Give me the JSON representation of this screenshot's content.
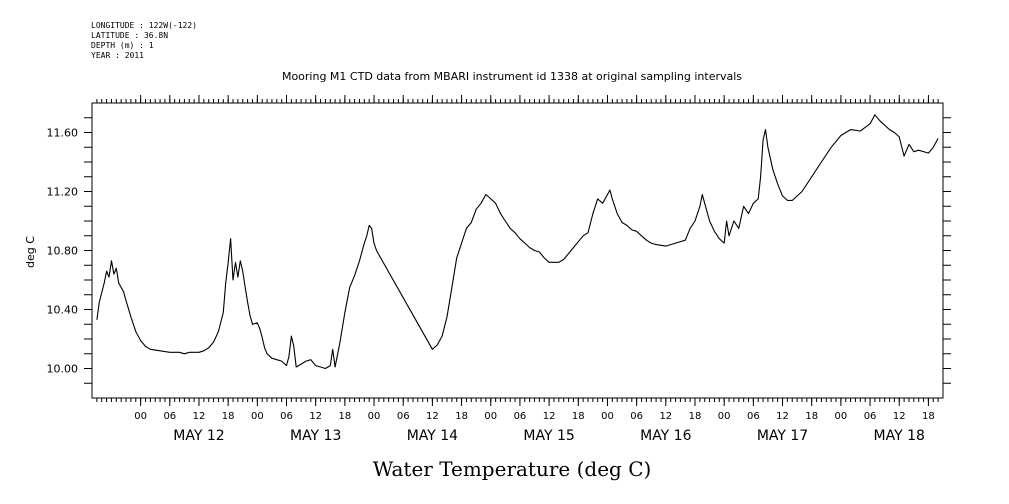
{
  "header": {
    "lines": [
      "LONGITUDE : 122W(-122)",
      "LATITUDE : 36.8N",
      "DEPTH (m) : 1",
      "YEAR : 2011"
    ]
  },
  "chart_data": {
    "type": "line",
    "title": "Mooring M1 CTD data from MBARI instrument id 1338 at original sampling intervals",
    "xlabel": "Water Temperature (deg C)",
    "ylabel": "deg C",
    "ylim": [
      9.8,
      11.8
    ],
    "xlim": [
      "2011-05-11T14:00",
      "2011-05-18T21:00"
    ],
    "y_ticks": [
      10.0,
      10.4,
      10.8,
      11.2,
      11.6
    ],
    "y_tick_labels": [
      "10.00",
      "10.40",
      "10.80",
      "11.20",
      "11.60"
    ],
    "x_hour_ticks": [
      {
        "t": "2011-05-12T00:00",
        "label": "00"
      },
      {
        "t": "2011-05-12T06:00",
        "label": "06"
      },
      {
        "t": "2011-05-12T12:00",
        "label": "12"
      },
      {
        "t": "2011-05-12T18:00",
        "label": "18"
      },
      {
        "t": "2011-05-13T00:00",
        "label": "00"
      },
      {
        "t": "2011-05-13T06:00",
        "label": "06"
      },
      {
        "t": "2011-05-13T12:00",
        "label": "12"
      },
      {
        "t": "2011-05-13T18:00",
        "label": "18"
      },
      {
        "t": "2011-05-14T00:00",
        "label": "00"
      },
      {
        "t": "2011-05-14T06:00",
        "label": "06"
      },
      {
        "t": "2011-05-14T12:00",
        "label": "12"
      },
      {
        "t": "2011-05-14T18:00",
        "label": "18"
      },
      {
        "t": "2011-05-15T00:00",
        "label": "00"
      },
      {
        "t": "2011-05-15T06:00",
        "label": "06"
      },
      {
        "t": "2011-05-15T12:00",
        "label": "12"
      },
      {
        "t": "2011-05-15T18:00",
        "label": "18"
      },
      {
        "t": "2011-05-16T00:00",
        "label": "00"
      },
      {
        "t": "2011-05-16T06:00",
        "label": "06"
      },
      {
        "t": "2011-05-16T12:00",
        "label": "12"
      },
      {
        "t": "2011-05-16T18:00",
        "label": "18"
      },
      {
        "t": "2011-05-17T00:00",
        "label": "00"
      },
      {
        "t": "2011-05-17T06:00",
        "label": "06"
      },
      {
        "t": "2011-05-17T12:00",
        "label": "12"
      },
      {
        "t": "2011-05-17T18:00",
        "label": "18"
      },
      {
        "t": "2011-05-18T00:00",
        "label": "00"
      },
      {
        "t": "2011-05-18T06:00",
        "label": "06"
      },
      {
        "t": "2011-05-18T12:00",
        "label": "12"
      },
      {
        "t": "2011-05-18T18:00",
        "label": "18"
      }
    ],
    "day_labels": [
      {
        "t": "2011-05-12T12:00",
        "label": "MAY 12"
      },
      {
        "t": "2011-05-13T12:00",
        "label": "MAY 13"
      },
      {
        "t": "2011-05-14T12:00",
        "label": "MAY 14"
      },
      {
        "t": "2011-05-15T12:00",
        "label": "MAY 15"
      },
      {
        "t": "2011-05-16T12:00",
        "label": "MAY 16"
      },
      {
        "t": "2011-05-17T12:00",
        "label": "MAY 17"
      },
      {
        "t": "2011-05-18T12:00",
        "label": "MAY 18"
      }
    ],
    "series": [
      {
        "color": "#000000",
        "points": [
          [
            "2011-05-11T15:00",
            10.33
          ],
          [
            "2011-05-11T15:30",
            10.45
          ],
          [
            "2011-05-11T16:30",
            10.58
          ],
          [
            "2011-05-11T17:00",
            10.66
          ],
          [
            "2011-05-11T17:30",
            10.62
          ],
          [
            "2011-05-11T18:00",
            10.73
          ],
          [
            "2011-05-11T18:30",
            10.64
          ],
          [
            "2011-05-11T19:00",
            10.68
          ],
          [
            "2011-05-11T19:30",
            10.58
          ],
          [
            "2011-05-11T20:30",
            10.52
          ],
          [
            "2011-05-11T21:00",
            10.46
          ],
          [
            "2011-05-11T22:00",
            10.35
          ],
          [
            "2011-05-11T23:00",
            10.25
          ],
          [
            "2011-05-12T00:00",
            10.19
          ],
          [
            "2011-05-12T01:00",
            10.15
          ],
          [
            "2011-05-12T02:00",
            10.13
          ],
          [
            "2011-05-12T04:00",
            10.12
          ],
          [
            "2011-05-12T06:00",
            10.11
          ],
          [
            "2011-05-12T08:00",
            10.11
          ],
          [
            "2011-05-12T09:00",
            10.1
          ],
          [
            "2011-05-12T10:00",
            10.11
          ],
          [
            "2011-05-12T12:00",
            10.11
          ],
          [
            "2011-05-12T13:00",
            10.12
          ],
          [
            "2011-05-12T14:00",
            10.14
          ],
          [
            "2011-05-12T15:00",
            10.18
          ],
          [
            "2011-05-12T16:00",
            10.25
          ],
          [
            "2011-05-12T17:00",
            10.38
          ],
          [
            "2011-05-12T17:30",
            10.58
          ],
          [
            "2011-05-12T18:00",
            10.72
          ],
          [
            "2011-05-12T18:30",
            10.88
          ],
          [
            "2011-05-12T19:00",
            10.6
          ],
          [
            "2011-05-12T19:30",
            10.72
          ],
          [
            "2011-05-12T20:00",
            10.62
          ],
          [
            "2011-05-12T20:30",
            10.73
          ],
          [
            "2011-05-12T21:00",
            10.66
          ],
          [
            "2011-05-12T21:30",
            10.55
          ],
          [
            "2011-05-12T22:00",
            10.45
          ],
          [
            "2011-05-12T22:30",
            10.36
          ],
          [
            "2011-05-12T23:00",
            10.3
          ],
          [
            "2011-05-13T00:00",
            10.31
          ],
          [
            "2011-05-13T00:30",
            10.27
          ],
          [
            "2011-05-13T01:00",
            10.21
          ],
          [
            "2011-05-13T01:30",
            10.14
          ],
          [
            "2011-05-13T02:00",
            10.1
          ],
          [
            "2011-05-13T03:00",
            10.07
          ],
          [
            "2011-05-13T04:00",
            10.06
          ],
          [
            "2011-05-13T05:00",
            10.05
          ],
          [
            "2011-05-13T06:00",
            10.02
          ],
          [
            "2011-05-13T06:30",
            10.08
          ],
          [
            "2011-05-13T07:00",
            10.22
          ],
          [
            "2011-05-13T07:30",
            10.15
          ],
          [
            "2011-05-13T08:00",
            10.01
          ],
          [
            "2011-05-13T09:00",
            10.03
          ],
          [
            "2011-05-13T10:00",
            10.05
          ],
          [
            "2011-05-13T11:00",
            10.06
          ],
          [
            "2011-05-13T12:00",
            10.02
          ],
          [
            "2011-05-13T13:00",
            10.01
          ],
          [
            "2011-05-13T14:00",
            10.0
          ],
          [
            "2011-05-13T15:00",
            10.02
          ],
          [
            "2011-05-13T15:30",
            10.13
          ],
          [
            "2011-05-13T16:00",
            10.01
          ],
          [
            "2011-05-13T17:00",
            10.18
          ],
          [
            "2011-05-13T18:00",
            10.38
          ],
          [
            "2011-05-13T19:00",
            10.55
          ],
          [
            "2011-05-13T20:00",
            10.63
          ],
          [
            "2011-05-13T21:00",
            10.73
          ],
          [
            "2011-05-13T22:00",
            10.85
          ],
          [
            "2011-05-13T22:30",
            10.9
          ],
          [
            "2011-05-13T23:00",
            10.97
          ],
          [
            "2011-05-13T23:30",
            10.95
          ],
          [
            "2011-05-14T00:00",
            10.85
          ],
          [
            "2011-05-14T00:30",
            10.8
          ],
          [
            "2011-05-14T12:00",
            10.13
          ],
          [
            "2011-05-14T13:00",
            10.16
          ],
          [
            "2011-05-14T14:00",
            10.22
          ],
          [
            "2011-05-14T15:00",
            10.35
          ],
          [
            "2011-05-14T16:00",
            10.55
          ],
          [
            "2011-05-14T17:00",
            10.75
          ],
          [
            "2011-05-14T18:00",
            10.85
          ],
          [
            "2011-05-14T19:00",
            10.95
          ],
          [
            "2011-05-14T20:00",
            10.99
          ],
          [
            "2011-05-14T21:00",
            11.08
          ],
          [
            "2011-05-14T22:00",
            11.12
          ],
          [
            "2011-05-14T23:00",
            11.18
          ],
          [
            "2011-05-15T00:00",
            11.15
          ],
          [
            "2011-05-15T01:00",
            11.12
          ],
          [
            "2011-05-15T02:00",
            11.05
          ],
          [
            "2011-05-15T03:00",
            11.0
          ],
          [
            "2011-05-15T04:00",
            10.95
          ],
          [
            "2011-05-15T05:00",
            10.92
          ],
          [
            "2011-05-15T06:00",
            10.88
          ],
          [
            "2011-05-15T07:00",
            10.85
          ],
          [
            "2011-05-15T08:00",
            10.82
          ],
          [
            "2011-05-15T09:00",
            10.8
          ],
          [
            "2011-05-15T10:00",
            10.79
          ],
          [
            "2011-05-15T11:00",
            10.75
          ],
          [
            "2011-05-15T12:00",
            10.72
          ],
          [
            "2011-05-15T14:00",
            10.72
          ],
          [
            "2011-05-15T15:00",
            10.74
          ],
          [
            "2011-05-15T16:00",
            10.78
          ],
          [
            "2011-05-15T17:00",
            10.82
          ],
          [
            "2011-05-15T18:00",
            10.86
          ],
          [
            "2011-05-15T19:00",
            10.9
          ],
          [
            "2011-05-15T20:00",
            10.92
          ],
          [
            "2011-05-15T21:00",
            11.05
          ],
          [
            "2011-05-15T22:00",
            11.15
          ],
          [
            "2011-05-15T23:00",
            11.12
          ],
          [
            "2011-05-16T00:00",
            11.18
          ],
          [
            "2011-05-16T00:30",
            11.21
          ],
          [
            "2011-05-16T01:00",
            11.15
          ],
          [
            "2011-05-16T02:00",
            11.05
          ],
          [
            "2011-05-16T03:00",
            10.99
          ],
          [
            "2011-05-16T04:00",
            10.97
          ],
          [
            "2011-05-16T05:00",
            10.94
          ],
          [
            "2011-05-16T06:00",
            10.93
          ],
          [
            "2011-05-16T07:00",
            10.9
          ],
          [
            "2011-05-16T08:00",
            10.87
          ],
          [
            "2011-05-16T09:00",
            10.85
          ],
          [
            "2011-05-16T10:00",
            10.84
          ],
          [
            "2011-05-16T12:00",
            10.83
          ],
          [
            "2011-05-16T14:00",
            10.85
          ],
          [
            "2011-05-16T16:00",
            10.87
          ],
          [
            "2011-05-16T17:00",
            10.95
          ],
          [
            "2011-05-16T18:00",
            11.0
          ],
          [
            "2011-05-16T19:00",
            11.1
          ],
          [
            "2011-05-16T19:30",
            11.18
          ],
          [
            "2011-05-16T20:00",
            11.12
          ],
          [
            "2011-05-16T21:00",
            11.0
          ],
          [
            "2011-05-16T22:00",
            10.93
          ],
          [
            "2011-05-16T23:00",
            10.88
          ],
          [
            "2011-05-17T00:00",
            10.85
          ],
          [
            "2011-05-17T00:30",
            11.0
          ],
          [
            "2011-05-17T01:00",
            10.9
          ],
          [
            "2011-05-17T02:00",
            11.0
          ],
          [
            "2011-05-17T03:00",
            10.95
          ],
          [
            "2011-05-17T04:00",
            11.1
          ],
          [
            "2011-05-17T05:00",
            11.05
          ],
          [
            "2011-05-17T06:00",
            11.12
          ],
          [
            "2011-05-17T07:00",
            11.15
          ],
          [
            "2011-05-17T07:30",
            11.3
          ],
          [
            "2011-05-17T08:00",
            11.55
          ],
          [
            "2011-05-17T08:30",
            11.62
          ],
          [
            "2011-05-17T09:00",
            11.5
          ],
          [
            "2011-05-17T10:00",
            11.35
          ],
          [
            "2011-05-17T11:00",
            11.25
          ],
          [
            "2011-05-17T12:00",
            11.17
          ],
          [
            "2011-05-17T13:00",
            11.14
          ],
          [
            "2011-05-17T14:00",
            11.14
          ],
          [
            "2011-05-17T16:00",
            11.2
          ],
          [
            "2011-05-17T18:00",
            11.3
          ],
          [
            "2011-05-17T20:00",
            11.4
          ],
          [
            "2011-05-17T22:00",
            11.5
          ],
          [
            "2011-05-18T00:00",
            11.58
          ],
          [
            "2011-05-18T02:00",
            11.62
          ],
          [
            "2011-05-18T04:00",
            11.61
          ],
          [
            "2011-05-18T06:00",
            11.66
          ],
          [
            "2011-05-18T07:00",
            11.72
          ],
          [
            "2011-05-18T08:00",
            11.68
          ],
          [
            "2011-05-18T10:00",
            11.62
          ],
          [
            "2011-05-18T11:00",
            11.6
          ],
          [
            "2011-05-18T12:00",
            11.57
          ],
          [
            "2011-05-18T13:00",
            11.44
          ],
          [
            "2011-05-18T14:00",
            11.52
          ],
          [
            "2011-05-18T15:00",
            11.47
          ],
          [
            "2011-05-18T16:00",
            11.48
          ],
          [
            "2011-05-18T18:00",
            11.46
          ],
          [
            "2011-05-18T19:00",
            11.5
          ],
          [
            "2011-05-18T20:00",
            11.56
          ]
        ]
      }
    ],
    "grid": false
  }
}
